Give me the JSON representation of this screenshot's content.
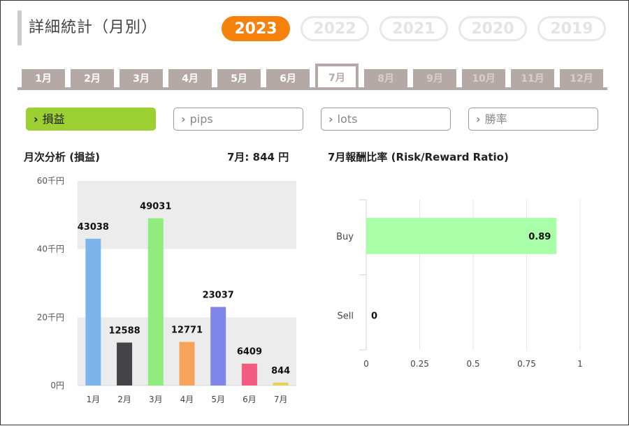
{
  "header": {
    "title": "詳細統計（月別）"
  },
  "years": [
    {
      "label": "2023",
      "active": true
    },
    {
      "label": "2022",
      "active": false
    },
    {
      "label": "2021",
      "active": false
    },
    {
      "label": "2020",
      "active": false
    },
    {
      "label": "2019",
      "active": false
    }
  ],
  "months": [
    {
      "label": "1月",
      "state": "normal"
    },
    {
      "label": "2月",
      "state": "normal"
    },
    {
      "label": "3月",
      "state": "normal"
    },
    {
      "label": "4月",
      "state": "normal"
    },
    {
      "label": "5月",
      "state": "normal"
    },
    {
      "label": "6月",
      "state": "normal"
    },
    {
      "label": "7月",
      "state": "active"
    },
    {
      "label": "8月",
      "state": "disabled"
    },
    {
      "label": "9月",
      "state": "disabled"
    },
    {
      "label": "10月",
      "state": "disabled"
    },
    {
      "label": "11月",
      "state": "disabled"
    },
    {
      "label": "12月",
      "state": "disabled"
    }
  ],
  "metrics": [
    {
      "label": "損益",
      "active": true
    },
    {
      "label": "pips",
      "active": false
    },
    {
      "label": "lots",
      "active": false
    },
    {
      "label": "勝率",
      "active": false
    }
  ],
  "monthly": {
    "title": "月次分析 (損益)",
    "summary": "7月:  844 円"
  },
  "rr": {
    "title": "7月報酬比率 (Risk/Reward Ratio)"
  },
  "chart_data": [
    {
      "type": "bar",
      "categories": [
        "1月",
        "2月",
        "3月",
        "4月",
        "5月",
        "6月",
        "7月"
      ],
      "values": [
        43038,
        12588,
        49031,
        12771,
        23037,
        6409,
        844
      ],
      "colors": [
        "#7cb5ec",
        "#434348",
        "#90ed7d",
        "#f7a35c",
        "#8085e9",
        "#f15c80",
        "#e4d354"
      ],
      "ylim": [
        0,
        60000
      ],
      "yticks": [
        {
          "value": 0,
          "label": "0円"
        },
        {
          "value": 20000,
          "label": "20千円"
        },
        {
          "value": 40000,
          "label": "40千円"
        },
        {
          "value": 60000,
          "label": "60千円"
        }
      ],
      "grid": "alternating bands"
    },
    {
      "type": "bar",
      "orientation": "horizontal",
      "categories": [
        "Buy",
        "Sell"
      ],
      "values": [
        0.89,
        0
      ],
      "color": "#a8ffa8",
      "xlim": [
        0,
        1
      ],
      "xticks": [
        "0",
        "0.25",
        "0.5",
        "0.75",
        "1"
      ]
    }
  ]
}
